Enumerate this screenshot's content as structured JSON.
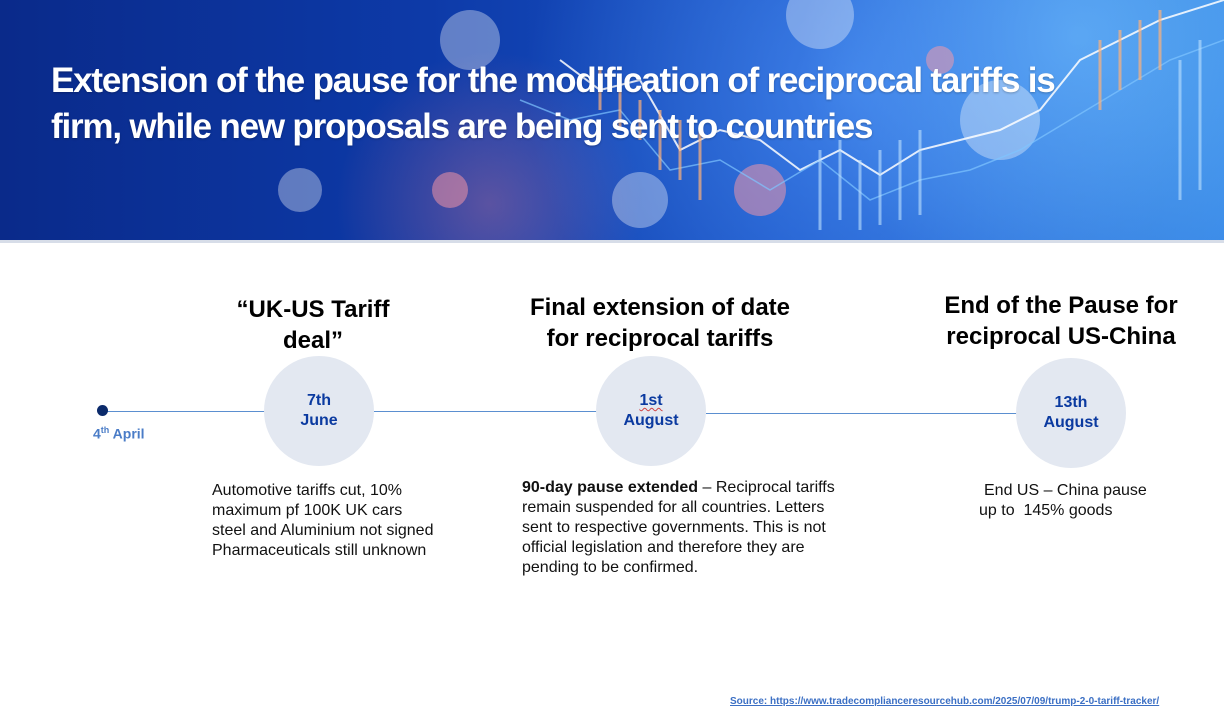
{
  "banner": {
    "title_line1": "Extension of the pause for the modification of reciprocal tariffs is",
    "title_line2": "firm, while new proposals are being sent to countries"
  },
  "timeline": {
    "start": {
      "day": "4",
      "suffix": "th",
      "month": "April"
    },
    "events": [
      {
        "heading_line1": "“UK-US Tariff",
        "heading_line2": "deal”",
        "date_line1": "7th",
        "date_line2": "June",
        "desc_lines": [
          "Automotive tariffs cut, 10%",
          "maximum pf 100K UK cars",
          "steel and Aluminium not signed",
          "Pharmaceuticals still unknown"
        ]
      },
      {
        "heading_line1": "Final extension of date",
        "heading_line2": "for reciprocal tariffs",
        "date_line1": "1st",
        "date_line2": "August",
        "desc_bold": "90-day pause extended",
        "desc_line1_rest": " – Reciprocal tariffs",
        "desc_lines": [
          "remain suspended for all countries. Letters",
          "sent to respective governments. This is not",
          "official legislation and therefore they are",
          "pending to be confirmed."
        ]
      },
      {
        "heading_line1": "End of the Pause for",
        "heading_line2": "reciprocal US-China",
        "date_line1": "13th",
        "date_line2": "August",
        "desc_lines": [
          "End US – China pause",
          "up to  145% goods"
        ]
      }
    ]
  },
  "source": "Source: https://www.tradecomplianceresourcehub.com/2025/07/09/trump-2-0-tariff-tracker/",
  "colors": {
    "banner_dark": "#0a2a8a",
    "date_text": "#0b3aa0",
    "circle_fill": "#e3e8f1",
    "timeline_line": "#5b8fd0",
    "start_dot": "#0b2a6b",
    "link": "#3b6fc4"
  }
}
